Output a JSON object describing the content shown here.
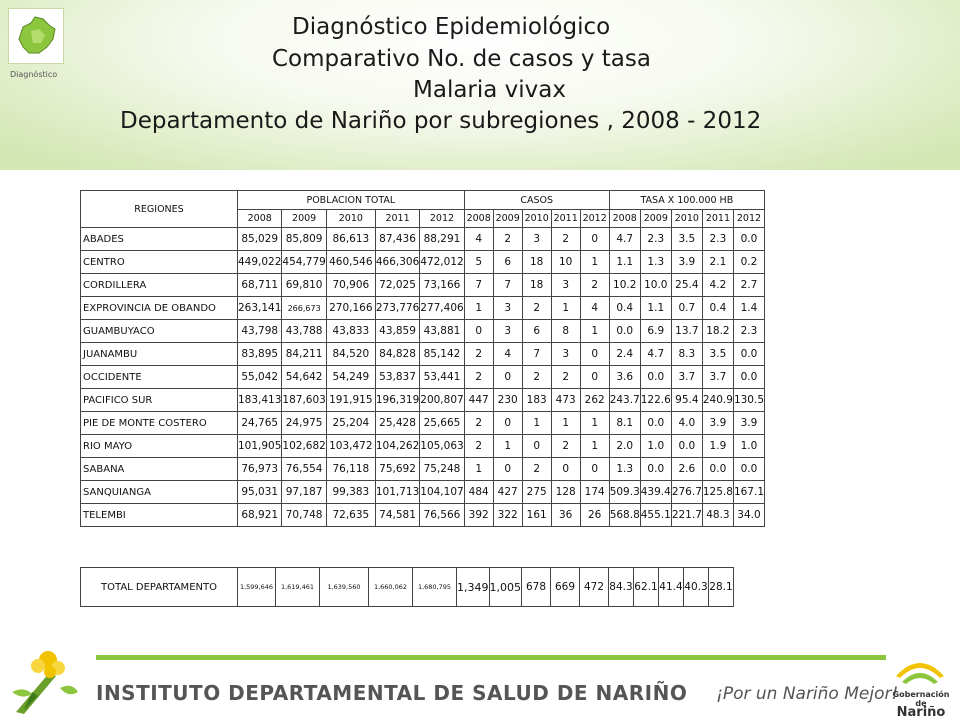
{
  "header": {
    "logo_caption": "Diagnóstico",
    "title_lines": [
      "Diagnóstico Epidemiológico",
      "Comparativo No. de casos y tasa",
      "Malaria vivax",
      "Departamento de Nariño por subregiones ,  2008 - 2012"
    ]
  },
  "table": {
    "regions_header": "REGIONES",
    "poblacion_header": "POBLACION  TOTAL",
    "casos_header": "CASOS",
    "tasa_header": "TASA  X 100.000  HB",
    "years": [
      "2008",
      "2009",
      "2010",
      "2011",
      "2012"
    ],
    "case_years": [
      "2008",
      "2009",
      "2010",
      "2011",
      "2012"
    ],
    "rows": [
      {
        "region": "ABADES",
        "pob": [
          "85,029",
          "85,809",
          "86,613",
          "87,436",
          "88,291"
        ],
        "casos": [
          "4",
          "2",
          "3",
          "2",
          "0"
        ],
        "tasa": [
          "4.7",
          "2.3",
          "3.5",
          "2.3",
          "0.0"
        ]
      },
      {
        "region": "CENTRO",
        "pob": [
          "449,022",
          "454,779",
          "460,546",
          "466,306",
          "472,012"
        ],
        "casos": [
          "5",
          "6",
          "18",
          "10",
          "1"
        ],
        "tasa": [
          "1.1",
          "1.3",
          "3.9",
          "2.1",
          "0.2"
        ]
      },
      {
        "region": "CORDILLERA",
        "pob": [
          "68,711",
          "69,810",
          "70,906",
          "72,025",
          "73,166"
        ],
        "casos": [
          "7",
          "7",
          "18",
          "3",
          "2"
        ],
        "tasa": [
          "10.2",
          "10.0",
          "25.4",
          "4.2",
          "2.7"
        ]
      },
      {
        "region": "EXPROVINCIA DE OBANDO",
        "pob": [
          "263,141",
          "266,673",
          "270,166",
          "273,776",
          "277,406"
        ],
        "casos": [
          "1",
          "3",
          "2",
          "1",
          "4"
        ],
        "tasa": [
          "0.4",
          "1.1",
          "0.7",
          "0.4",
          "1.4"
        ]
      },
      {
        "region": "GUAMBUYACO",
        "pob": [
          "43,798",
          "43,788",
          "43,833",
          "43,859",
          "43,881"
        ],
        "casos": [
          "0",
          "3",
          "6",
          "8",
          "1"
        ],
        "tasa": [
          "0.0",
          "6.9",
          "13.7",
          "18.2",
          "2.3"
        ]
      },
      {
        "region": "JUANAMBU",
        "pob": [
          "83,895",
          "84,211",
          "84,520",
          "84,828",
          "85,142"
        ],
        "casos": [
          "2",
          "4",
          "7",
          "3",
          "0"
        ],
        "tasa": [
          "2.4",
          "4.7",
          "8.3",
          "3.5",
          "0.0"
        ]
      },
      {
        "region": "OCCIDENTE",
        "pob": [
          "55,042",
          "54,642",
          "54,249",
          "53,837",
          "53,441"
        ],
        "casos": [
          "2",
          "0",
          "2",
          "2",
          "0"
        ],
        "tasa": [
          "3.6",
          "0.0",
          "3.7",
          "3.7",
          "0.0"
        ]
      },
      {
        "region": "PACIFICO SUR",
        "pob": [
          "183,413",
          "187,603",
          "191,915",
          "196,319",
          "200,807"
        ],
        "casos": [
          "447",
          "230",
          "183",
          "473",
          "262"
        ],
        "tasa": [
          "243.7",
          "122.6",
          "95.4",
          "240.9",
          "130.5"
        ]
      },
      {
        "region": "PIE DE MONTE COSTERO",
        "pob": [
          "24,765",
          "24,975",
          "25,204",
          "25,428",
          "25,665"
        ],
        "casos": [
          "2",
          "0",
          "1",
          "1",
          "1"
        ],
        "tasa": [
          "8.1",
          "0.0",
          "4.0",
          "3.9",
          "3.9"
        ]
      },
      {
        "region": "RIO MAYO",
        "pob": [
          "101,905",
          "102,682",
          "103,472",
          "104,262",
          "105,063"
        ],
        "casos": [
          "2",
          "1",
          "0",
          "2",
          "1"
        ],
        "tasa": [
          "2.0",
          "1.0",
          "0.0",
          "1.9",
          "1.0"
        ]
      },
      {
        "region": "SABANA",
        "pob": [
          "76,973",
          "76,554",
          "76,118",
          "75,692",
          "75,248"
        ],
        "casos": [
          "1",
          "0",
          "2",
          "0",
          "0"
        ],
        "tasa": [
          "1.3",
          "0.0",
          "2.6",
          "0.0",
          "0.0"
        ]
      },
      {
        "region": "SANQUIANGA",
        "pob": [
          "95,031",
          "97,187",
          "99,383",
          "101,713",
          "104,107"
        ],
        "casos": [
          "484",
          "427",
          "275",
          "128",
          "174"
        ],
        "tasa": [
          "509.3",
          "439.4",
          "276.7",
          "125.8",
          "167.1"
        ]
      },
      {
        "region": "TELEMBI",
        "pob": [
          "68,921",
          "70,748",
          "72,635",
          "74,581",
          "76,566"
        ],
        "casos": [
          "392",
          "322",
          "161",
          "36",
          "26"
        ],
        "tasa": [
          "568.8",
          "455.1",
          "221.7",
          "48.3",
          "34.0"
        ]
      }
    ],
    "total": {
      "label": "TOTAL DEPARTAMENTO",
      "pob": [
        "1,599,646",
        "1,619,461",
        "1,639,560",
        "1,660,062",
        "1,680,795"
      ],
      "casos": [
        "1,349",
        "1,005",
        "678",
        "669",
        "472"
      ],
      "tasa": [
        "84.3",
        "62.1",
        "41.4",
        "40.3",
        "28.1"
      ]
    }
  },
  "footer": {
    "institute": "INSTITUTO DEPARTAMENTAL DE SALUD DE NARIÑO",
    "slogan": "¡Por un Nariño Mejor!",
    "gob_small": "Gobernación de",
    "gob_big": "Nariño"
  },
  "colors": {
    "accent_green": "#8cc63f",
    "logo_yellow": "#f2c300",
    "text_gray": "#555555"
  }
}
